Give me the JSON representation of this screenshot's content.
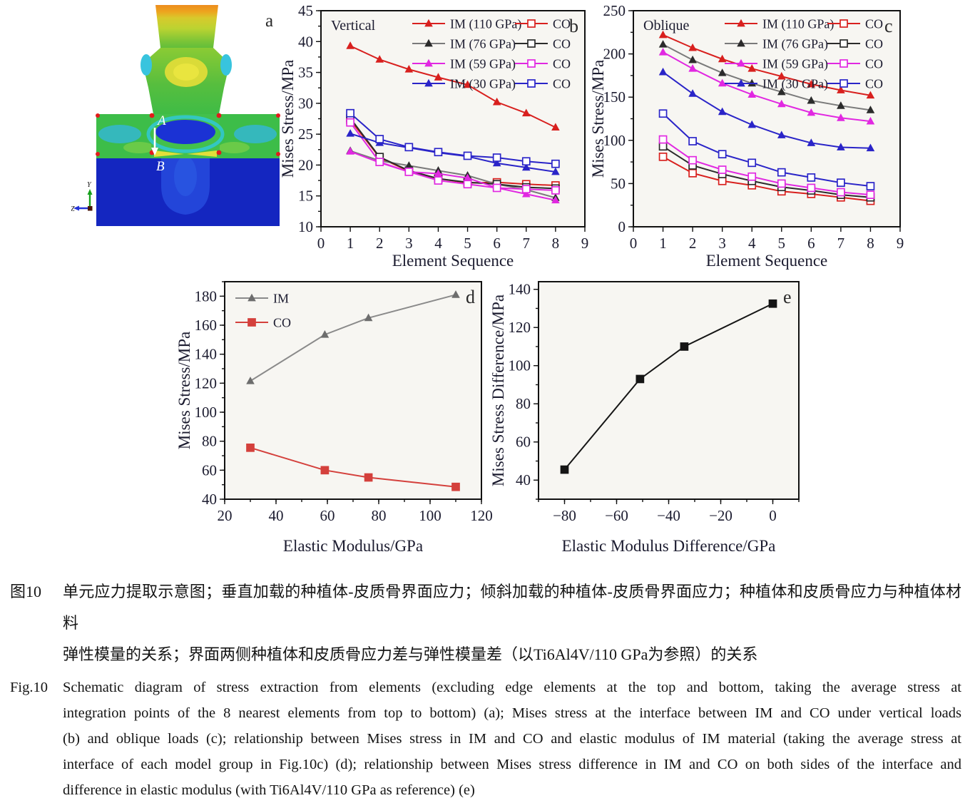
{
  "page": {
    "panel_a": {
      "panel_letter": "a",
      "point_a_label": "A",
      "point_b_label": "B",
      "axis_y_label": "Y",
      "axis_z_label": "Z"
    },
    "caption_cn": {
      "tag": "图10",
      "lines": [
        "单元应力提取示意图；垂直加载的种植体-皮质骨界面应力；倾斜加载的种植体-皮质骨界面应力；种植体和皮质骨应力与种植体材料",
        "弹性模量的关系；界面两侧种植体和皮质骨应力差与弹性模量差（以Ti6Al4V/110 GPa为参照）的关系"
      ]
    },
    "caption_en": {
      "tag": "Fig.10",
      "lines": [
        "Schematic diagram of stress extraction from elements (excluding edge elements at the top and bottom, taking the average stress at",
        "integration points of the 8 nearest elements from top to bottom) (a); Mises stress at the interface between IM and CO under vertical loads",
        "(b) and oblique loads (c); relationship between Mises stress in IM and CO and elastic modulus of IM material (taking the average stress at",
        "interface of each model group in Fig.10c) (d); relationship between Mises stress difference in IM and CO on both sides of the interface and",
        "difference in elastic modulus (with Ti6Al4V/110 GPa as reference) (e)"
      ]
    }
  },
  "chart_data": [
    {
      "panel": "b",
      "type": "line",
      "corner_label": "Vertical",
      "panel_letter": "b",
      "xlabel": "Element Sequence",
      "ylabel": "Mises Stress/MPa",
      "xlim": [
        0,
        9
      ],
      "ylim": [
        10,
        45
      ],
      "xticks": [
        0,
        1,
        2,
        3,
        4,
        5,
        6,
        7,
        8,
        9
      ],
      "yticks": [
        10,
        15,
        20,
        25,
        30,
        35,
        40,
        45
      ],
      "yminor": 2.5,
      "x": [
        1,
        2,
        3,
        4,
        5,
        6,
        7,
        8
      ],
      "legend": {
        "position": "top-right",
        "columns": 2
      },
      "series": [
        {
          "name": "IM (110 GPa)",
          "color": "#D8201E",
          "marker": "triangle",
          "values": [
            39.3,
            37.1,
            35.5,
            34.2,
            33.0,
            30.2,
            28.4,
            26.1
          ]
        },
        {
          "name": "CO",
          "color": "#D8201E",
          "marker": "square-open",
          "values": [
            27.3,
            21.2,
            19.0,
            17.8,
            17.1,
            17.2,
            16.9,
            16.7
          ]
        },
        {
          "name": "IM (76 GPa)",
          "color": "#7a7a7a",
          "marker_color": "#2b2b2b",
          "marker": "triangle",
          "values": [
            22.3,
            20.7,
            19.9,
            19.1,
            18.3,
            16.9,
            16.0,
            14.7
          ]
        },
        {
          "name": "CO",
          "color": "#2b2b2b",
          "marker": "square-open",
          "values": [
            27.6,
            21.3,
            19.1,
            17.8,
            17.2,
            16.9,
            16.4,
            16.2
          ]
        },
        {
          "name": "IM (59 GPa)",
          "color": "#E128E1",
          "marker": "triangle",
          "values": [
            22.2,
            20.4,
            18.9,
            18.6,
            17.9,
            16.3,
            15.3,
            14.3
          ]
        },
        {
          "name": "CO",
          "color": "#E128E1",
          "marker": "square-open",
          "values": [
            26.9,
            20.5,
            18.9,
            17.5,
            16.9,
            16.3,
            16.1,
            15.9
          ]
        },
        {
          "name": "IM (30 GPa)",
          "color": "#2A24C8",
          "marker": "triangle",
          "values": [
            25.1,
            23.6,
            22.8,
            22.0,
            21.4,
            20.3,
            19.6,
            18.9
          ]
        },
        {
          "name": "CO",
          "color": "#2A24C8",
          "marker": "square-open",
          "values": [
            28.4,
            24.2,
            22.9,
            22.1,
            21.5,
            21.2,
            20.6,
            20.2
          ]
        }
      ]
    },
    {
      "panel": "c",
      "type": "line",
      "corner_label": "Oblique",
      "panel_letter": "c",
      "xlabel": "Element Sequence",
      "ylabel": "Mises Stress/MPa",
      "xlim": [
        0,
        9
      ],
      "ylim": [
        0,
        250
      ],
      "xticks": [
        0,
        1,
        2,
        3,
        4,
        5,
        6,
        7,
        8,
        9
      ],
      "yticks": [
        0,
        50,
        100,
        150,
        200,
        250
      ],
      "yminor": 25,
      "x": [
        1,
        2,
        3,
        4,
        5,
        6,
        7,
        8
      ],
      "legend": {
        "position": "top-right",
        "columns": 2
      },
      "series": [
        {
          "name": "IM (110 GPa)",
          "color": "#D8201E",
          "marker": "triangle",
          "values": [
            222,
            207,
            194,
            183,
            174,
            165,
            158,
            152
          ]
        },
        {
          "name": "CO",
          "color": "#D8201E",
          "marker": "square-open",
          "values": [
            81,
            62,
            53,
            48,
            41,
            38,
            34,
            30
          ]
        },
        {
          "name": "IM (76 GPa)",
          "color": "#7a7a7a",
          "marker_color": "#2b2b2b",
          "marker": "triangle",
          "values": [
            211,
            193,
            178,
            166,
            156,
            146,
            140,
            135
          ]
        },
        {
          "name": "CO",
          "color": "#2b2b2b",
          "marker": "square-open",
          "values": [
            93,
            71,
            61,
            53,
            46,
            42,
            37,
            34
          ]
        },
        {
          "name": "IM (59 GPa)",
          "color": "#E128E1",
          "marker": "triangle",
          "values": [
            202,
            183,
            166,
            153,
            142,
            132,
            126,
            122
          ]
        },
        {
          "name": "CO",
          "color": "#E128E1",
          "marker": "square-open",
          "values": [
            101,
            77,
            66,
            58,
            50,
            45,
            40,
            37
          ]
        },
        {
          "name": "IM (30 GPa)",
          "color": "#2A24C8",
          "marker": "triangle",
          "values": [
            179,
            154,
            133,
            118,
            106,
            97,
            92,
            91
          ]
        },
        {
          "name": "CO",
          "color": "#2A24C8",
          "marker": "square-open",
          "values": [
            131,
            99,
            84,
            74,
            63,
            57,
            51,
            47
          ]
        }
      ]
    },
    {
      "panel": "d",
      "type": "line",
      "panel_letter": "d",
      "xlabel": "Elastic Modulus/GPa",
      "ylabel": "Mises Stress/MPa",
      "xlim": [
        20,
        120
      ],
      "ylim": [
        40,
        190
      ],
      "xticks": [
        20,
        40,
        60,
        80,
        100,
        120
      ],
      "yticks": [
        40,
        60,
        80,
        100,
        120,
        140,
        160,
        180
      ],
      "xminor": 10,
      "yminor": 10,
      "x": [
        30,
        59,
        76,
        110
      ],
      "legend": {
        "position": "top-left",
        "columns": 1
      },
      "series": [
        {
          "name": "IM",
          "color": "#8a8a8a",
          "marker_color": "#6d6d6d",
          "marker": "triangle",
          "values": [
            121.5,
            153.5,
            165,
            181
          ]
        },
        {
          "name": "CO",
          "color": "#D4403C",
          "marker": "square-filled",
          "values": [
            75.5,
            60,
            55,
            48.5
          ]
        }
      ]
    },
    {
      "panel": "e",
      "type": "line",
      "panel_letter": "e",
      "xlabel": "Elastic Modulus Difference/GPa",
      "ylabel": "Mises Stress Difference/MPa",
      "xlim": [
        -90,
        10
      ],
      "ylim": [
        30,
        144
      ],
      "xticks": [
        -80,
        -60,
        -40,
        -20,
        0
      ],
      "yticks": [
        40,
        60,
        80,
        100,
        120,
        140
      ],
      "xminor": 10,
      "yminor": 10,
      "x": [
        -80,
        -51,
        -34,
        0
      ],
      "legend": null,
      "series": [
        {
          "name": "",
          "color": "#151515",
          "marker": "square-filled",
          "values": [
            45.5,
            93,
            110,
            132.5
          ]
        }
      ]
    }
  ]
}
